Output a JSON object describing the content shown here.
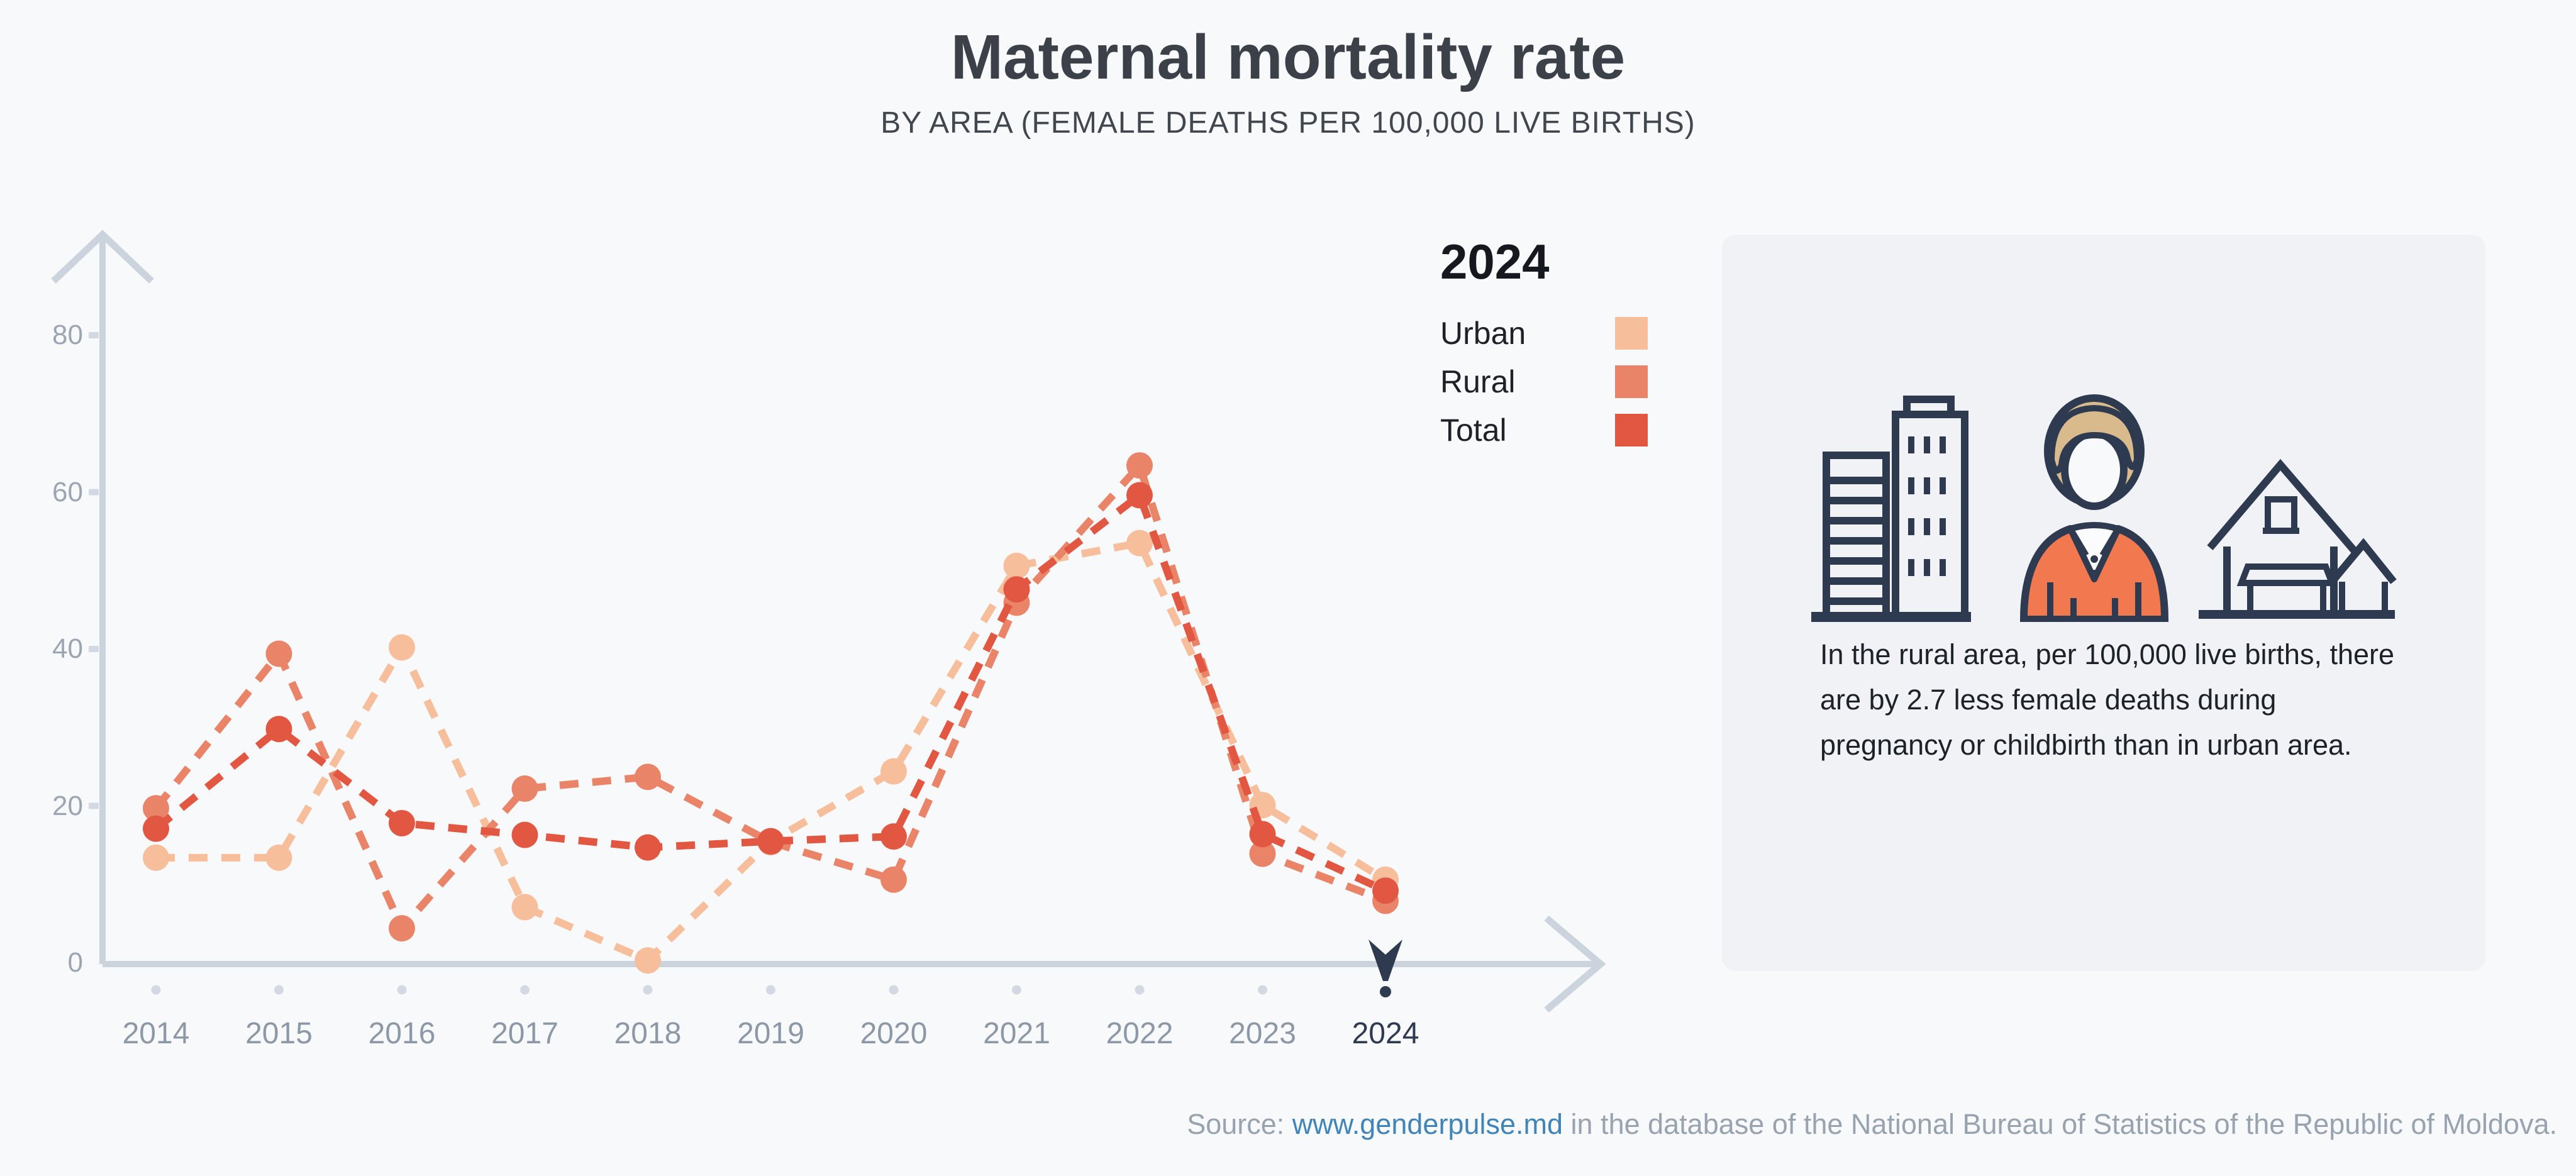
{
  "header": {
    "title": "Maternal mortality rate",
    "subtitle": "BY AREA (FEMALE DEATHS PER 100,000 LIVE BIRTHS)"
  },
  "chart_data": {
    "type": "line",
    "line_style": "dashed",
    "title": "Maternal mortality rate",
    "subtitle": "BY AREA (FEMALE DEATHS PER 100,000 LIVE BIRTHS)",
    "categories": [
      "2014",
      "2015",
      "2016",
      "2017",
      "2018",
      "2019",
      "2020",
      "2021",
      "2022",
      "2023",
      "2024"
    ],
    "series": [
      {
        "name": "Urban",
        "color": "#F6BE9B",
        "values": [
          13.4,
          13.4,
          40.2,
          7.1,
          0.3,
          15.5,
          24.4,
          50.6,
          53.5,
          20.1,
          10.6
        ]
      },
      {
        "name": "Rural",
        "color": "#EA8468",
        "values": [
          19.7,
          39.4,
          4.4,
          22.2,
          23.7,
          15.4,
          10.6,
          45.9,
          63.4,
          13.9,
          7.9
        ]
      },
      {
        "name": "Total",
        "color": "#E15742",
        "values": [
          17.1,
          29.8,
          17.8,
          16.3,
          14.7,
          15.5,
          16.1,
          47.6,
          59.6,
          16.4,
          9.2
        ]
      }
    ],
    "ylim": [
      0,
      93
    ],
    "yticks": [
      0,
      20,
      40,
      60,
      80
    ],
    "highlight_category": "2024",
    "grid": false,
    "legend_position": "right-top"
  },
  "legend": {
    "heading": "2024"
  },
  "info_card": {
    "text": "In the rural area, per 100,000 live births, there are by 2.7 less female deaths during pregnancy or childbirth than in urban area.",
    "icons": [
      "city-buildings-icon",
      "woman-icon",
      "village-houses-icon"
    ]
  },
  "source": {
    "prefix": "Source: ",
    "link_text": "www.genderpulse.md",
    "suffix": " in the database of the National Bureau of Statistics of the Republic of Moldova."
  },
  "colors": {
    "background": "#F8F9FB",
    "card_background": "#F0F2F6",
    "axis": "#CBD4DD",
    "tick_dot": "#D2D9E2",
    "y_label": "#9CA6B3",
    "x_label": "#8D98A7",
    "highlight": "#2E3A50",
    "title": "#3C4149",
    "legend_text": "#1E2228",
    "body_text": "#1D2128",
    "source_text": "#98A3AF",
    "link": "#4184B8",
    "icon_outline": "#2E3A50",
    "icon_hair": "#D9BA8C",
    "icon_jacket": "#F2794F"
  }
}
